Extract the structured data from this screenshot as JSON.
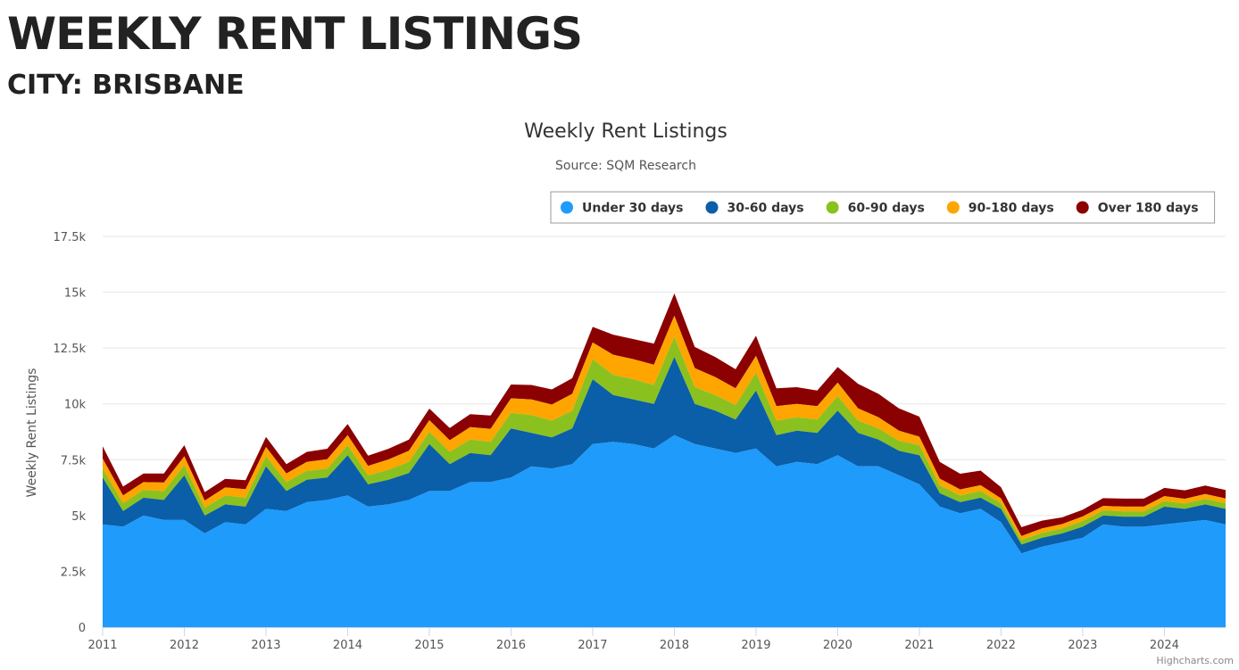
{
  "page": {
    "title": "WEEKLY RENT LISTINGS",
    "subtitle": "CITY: BRISBANE"
  },
  "credits": "Highcharts.com",
  "chart_data": {
    "type": "area",
    "stacked": true,
    "title": "Weekly Rent Listings",
    "subtitle": "Source: SQM Research",
    "ylabel": "Weekly Rent Listings",
    "xlabel": "",
    "ylim": [
      0,
      17500
    ],
    "yticks": [
      0,
      2500,
      5000,
      7500,
      10000,
      12500,
      15000,
      17500
    ],
    "ytick_labels": [
      "0",
      "2.5k",
      "5k",
      "7.5k",
      "10k",
      "12.5k",
      "15k",
      "17.5k"
    ],
    "xlim": [
      "2011-01",
      "2024-10"
    ],
    "xtick_labels": [
      "2011",
      "2012",
      "2013",
      "2014",
      "2015",
      "2016",
      "2017",
      "2018",
      "2019",
      "2020",
      "2021",
      "2022",
      "2023",
      "2024"
    ],
    "grid": true,
    "legend_position": "top-right",
    "x": [
      "2011-01",
      "2011-04",
      "2011-07",
      "2011-10",
      "2012-01",
      "2012-04",
      "2012-07",
      "2012-10",
      "2013-01",
      "2013-04",
      "2013-07",
      "2013-10",
      "2014-01",
      "2014-04",
      "2014-07",
      "2014-10",
      "2015-01",
      "2015-04",
      "2015-07",
      "2015-10",
      "2016-01",
      "2016-04",
      "2016-07",
      "2016-10",
      "2017-01",
      "2017-04",
      "2017-07",
      "2017-10",
      "2018-01",
      "2018-04",
      "2018-07",
      "2018-10",
      "2019-01",
      "2019-04",
      "2019-07",
      "2019-10",
      "2020-01",
      "2020-04",
      "2020-07",
      "2020-10",
      "2021-01",
      "2021-04",
      "2021-07",
      "2021-10",
      "2022-01",
      "2022-04",
      "2022-07",
      "2022-10",
      "2023-01",
      "2023-04",
      "2023-07",
      "2023-10",
      "2024-01",
      "2024-04",
      "2024-07",
      "2024-10"
    ],
    "series": [
      {
        "name": "Under 30 days",
        "color": "#1e9bfb",
        "values": [
          4600,
          4500,
          5000,
          4800,
          4800,
          4200,
          4700,
          4600,
          5300,
          5200,
          5600,
          5700,
          5900,
          5400,
          5500,
          5700,
          6100,
          6100,
          6500,
          6500,
          6700,
          7200,
          7100,
          7300,
          8200,
          8300,
          8200,
          8000,
          8600,
          8200,
          8000,
          7800,
          8000,
          7200,
          7400,
          7300,
          7700,
          7200,
          7200,
          6800,
          6400,
          5400,
          5100,
          5300,
          4700,
          3300,
          3600,
          3800,
          4000,
          4600,
          4500,
          4500,
          4600,
          4700,
          4800,
          4600
        ]
      },
      {
        "name": "30-60 days",
        "color": "#0b5ea8",
        "values": [
          2100,
          700,
          800,
          900,
          2000,
          800,
          800,
          800,
          1900,
          900,
          1000,
          1000,
          1800,
          1000,
          1100,
          1200,
          2100,
          1200,
          1300,
          1200,
          2200,
          1500,
          1400,
          1600,
          2900,
          2100,
          2000,
          2000,
          3500,
          1800,
          1700,
          1500,
          2600,
          1400,
          1400,
          1400,
          2000,
          1500,
          1200,
          1100,
          1300,
          600,
          500,
          500,
          600,
          400,
          400,
          400,
          500,
          400,
          450,
          450,
          800,
          600,
          700,
          700
        ]
      },
      {
        "name": "60-90 days",
        "color": "#8bc11f",
        "values": [
          400,
          350,
          350,
          400,
          450,
          350,
          400,
          400,
          450,
          400,
          400,
          400,
          450,
          400,
          450,
          500,
          550,
          550,
          600,
          600,
          700,
          800,
          750,
          800,
          900,
          900,
          900,
          850,
          900,
          750,
          700,
          650,
          800,
          650,
          600,
          600,
          650,
          550,
          500,
          450,
          450,
          350,
          300,
          300,
          250,
          200,
          220,
          220,
          250,
          230,
          240,
          240,
          250,
          240,
          250,
          250
        ]
      },
      {
        "name": "90-180 days",
        "color": "#ffa500",
        "values": [
          450,
          350,
          350,
          380,
          400,
          320,
          360,
          380,
          420,
          380,
          400,
          420,
          450,
          420,
          460,
          500,
          520,
          520,
          560,
          580,
          650,
          700,
          720,
          750,
          750,
          900,
          900,
          900,
          950,
          850,
          800,
          750,
          750,
          650,
          600,
          600,
          600,
          550,
          500,
          450,
          380,
          300,
          270,
          260,
          220,
          180,
          200,
          200,
          210,
          200,
          210,
          210,
          220,
          210,
          215,
          215
        ]
      },
      {
        "name": "Over 180 days",
        "color": "#8b0000",
        "values": [
          550,
          400,
          380,
          400,
          500,
          380,
          380,
          400,
          450,
          420,
          450,
          470,
          500,
          460,
          480,
          500,
          520,
          550,
          580,
          600,
          620,
          650,
          680,
          700,
          700,
          900,
          900,
          950,
          1000,
          950,
          900,
          850,
          900,
          800,
          750,
          700,
          700,
          1100,
          1050,
          1000,
          900,
          750,
          700,
          650,
          500,
          400,
          350,
          300,
          300,
          350,
          360,
          360,
          370,
          380,
          380,
          380
        ]
      }
    ]
  }
}
